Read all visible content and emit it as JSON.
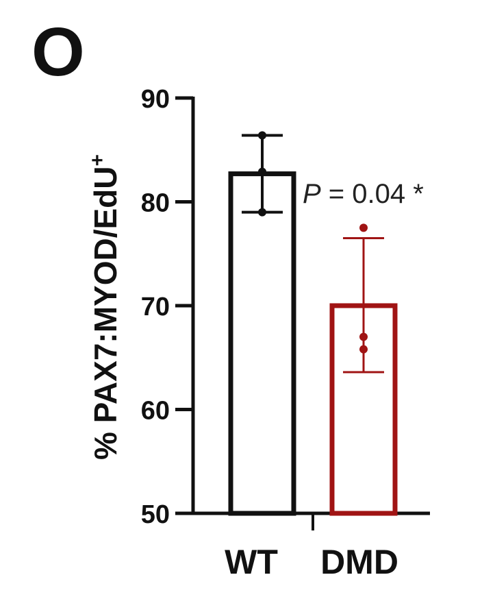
{
  "panel_label": "O",
  "chart_data": {
    "type": "bar",
    "categories": [
      "WT",
      "DMD"
    ],
    "series": [
      {
        "values": [
          82.7,
          70.0
        ],
        "error_high": [
          86.4,
          76.5
        ],
        "error_low": [
          79.0,
          63.6
        ],
        "points": [
          [
            86.4,
            82.9,
            79.0
          ],
          [
            77.5,
            67.0,
            65.8
          ]
        ],
        "colors": [
          "#111111",
          "#a01414"
        ]
      }
    ],
    "ylabel": "% PAX7:MYOD/EdU",
    "ylabel_superscript": "+",
    "ylim": [
      50,
      90
    ],
    "yticks": [
      50,
      60,
      70,
      80,
      90
    ],
    "annotation": {
      "p_italic": "P",
      "text": " = 0.04 *"
    },
    "grid": false,
    "legend": "none"
  }
}
